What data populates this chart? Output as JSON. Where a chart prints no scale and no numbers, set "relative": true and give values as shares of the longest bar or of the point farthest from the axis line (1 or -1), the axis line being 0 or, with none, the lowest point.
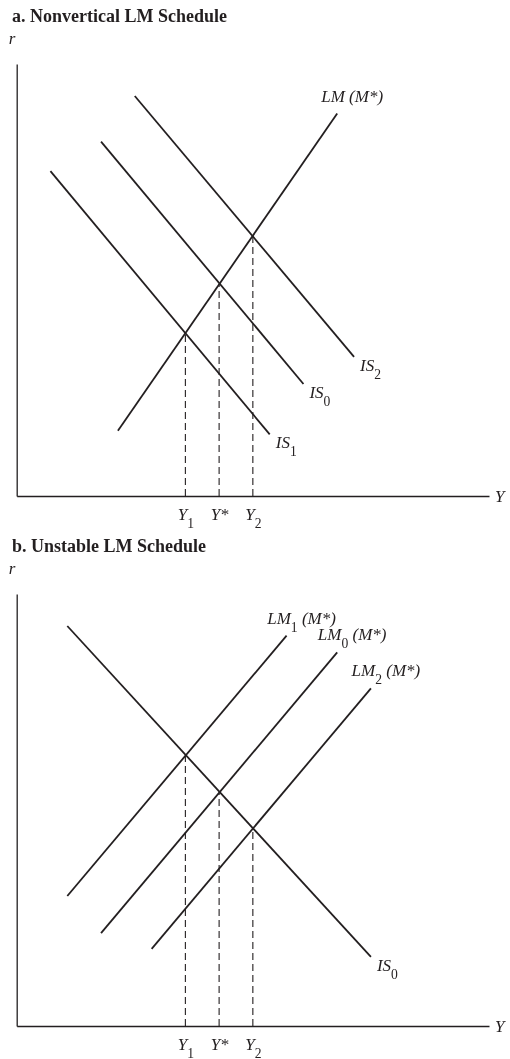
{
  "chart_data": [
    {
      "type": "line",
      "title": "a. Nonvertical LM Schedule",
      "xlabel": "Y",
      "ylabel": "r",
      "relative": true,
      "tick_labels": "x",
      "categories": [
        null,
        null,
        null,
        null,
        null,
        null,
        null,
        null,
        null,
        null,
        "Y$_{1}$",
        null,
        "Y*",
        null,
        "Y$_{2}$",
        null,
        null,
        null,
        null,
        null,
        null,
        null,
        null,
        null,
        null,
        null,
        null,
        null,
        null
      ],
      "series": [
        {
          "name": "LM (M*)",
          "color": "#231f20",
          "values": [
            null,
            null,
            null,
            null,
            null,
            null,
            0.163,
            null,
            null,
            null,
            null,
            null,
            null,
            null,
            null,
            null,
            null,
            null,
            null,
            0.956,
            null,
            null,
            null,
            null,
            null,
            null,
            null,
            null,
            null
          ]
        },
        {
          "name": "IS$_{2}$",
          "color": "#231f20",
          "values": [
            null,
            null,
            null,
            null,
            null,
            null,
            null,
            1,
            null,
            null,
            null,
            null,
            null,
            null,
            null,
            null,
            null,
            null,
            null,
            null,
            0.348,
            null,
            null,
            null,
            null,
            null,
            null,
            null,
            null
          ]
        },
        {
          "name": "IS$_{0}$",
          "color": "#231f20",
          "values": [
            null,
            null,
            null,
            null,
            null,
            0.886,
            null,
            null,
            null,
            null,
            null,
            null,
            null,
            null,
            null,
            null,
            null,
            0.28,
            null,
            null,
            null,
            null,
            null,
            null,
            null,
            null,
            null,
            null,
            null
          ]
        },
        {
          "name": "IS$_{1}$",
          "color": "#231f20",
          "values": [
            null,
            null,
            0.812,
            null,
            null,
            null,
            null,
            null,
            null,
            null,
            null,
            null,
            null,
            null,
            null,
            0.154,
            null,
            null,
            null,
            null,
            null,
            null,
            null,
            null,
            null,
            null,
            null,
            null,
            null
          ]
        },
        {
          "color": "#231f20",
          "line_style": "dashed",
          "x": [
            "Y$_{1}$",
            "Y$_{1}$"
          ],
          "values": [
            0,
            0.407
          ]
        },
        {
          "color": "#231f20",
          "line_style": "dashed",
          "x": [
            "Y*",
            "Y*"
          ],
          "values": [
            0,
            0.53
          ]
        },
        {
          "color": "#231f20",
          "line_style": "dashed",
          "x": [
            "Y$_{2}$",
            "Y$_{2}$"
          ],
          "values": [
            0,
            0.649
          ]
        }
      ]
    },
    {
      "type": "line",
      "title": "b. Unstable LM Schedule",
      "xlabel": "Y",
      "ylabel": "r",
      "relative": true,
      "tick_labels": "x",
      "categories": [
        null,
        null,
        null,
        null,
        null,
        null,
        null,
        null,
        null,
        null,
        "Y$_{1}$",
        null,
        "Y*",
        null,
        "Y$_{2}$",
        null,
        null,
        null,
        null,
        null,
        null,
        null,
        null,
        null,
        null,
        null,
        null,
        null,
        null
      ],
      "series": [
        {
          "name": "IS$_{0}$",
          "color": "#231f20",
          "values": [
            null,
            null,
            null,
            1,
            null,
            null,
            null,
            null,
            null,
            null,
            null,
            null,
            null,
            null,
            null,
            null,
            null,
            null,
            null,
            null,
            null,
            0.173,
            null,
            null,
            null,
            null,
            null,
            null,
            null
          ]
        },
        {
          "name": "LM$_{1}$ (M*)",
          "color": "#231f20",
          "values": [
            null,
            null,
            null,
            0.325,
            null,
            null,
            null,
            null,
            null,
            null,
            null,
            null,
            null,
            null,
            null,
            null,
            0.976,
            null,
            null,
            null,
            null,
            null,
            null,
            null,
            null,
            null,
            null,
            null,
            null
          ]
        },
        {
          "name": "LM$_{0}$ (M*)",
          "color": "#231f20",
          "values": [
            null,
            null,
            null,
            null,
            null,
            0.232,
            null,
            null,
            null,
            null,
            null,
            null,
            null,
            null,
            null,
            null,
            null,
            null,
            null,
            0.934,
            null,
            null,
            null,
            null,
            null,
            null,
            null,
            null,
            null
          ]
        },
        {
          "name": "LM$_{2}$ (M*)",
          "color": "#231f20",
          "values": [
            null,
            null,
            null,
            null,
            null,
            null,
            null,
            null,
            0.193,
            null,
            null,
            null,
            null,
            null,
            null,
            null,
            null,
            null,
            null,
            null,
            null,
            0.844,
            null,
            null,
            null,
            null,
            null,
            null,
            null
          ]
        },
        {
          "color": "#231f20",
          "line_style": "dashed",
          "x": [
            "Y$_{1}$",
            "Y$_{1}$"
          ],
          "values": [
            0,
            0.676
          ]
        },
        {
          "color": "#231f20",
          "line_style": "dashed",
          "x": [
            "Y*",
            "Y*"
          ],
          "values": [
            0,
            0.583
          ]
        },
        {
          "color": "#231f20",
          "line_style": "dashed",
          "x": [
            "Y$_{2}$",
            "Y$_{2}$"
          ],
          "values": [
            0,
            0.493
          ]
        }
      ]
    }
  ]
}
